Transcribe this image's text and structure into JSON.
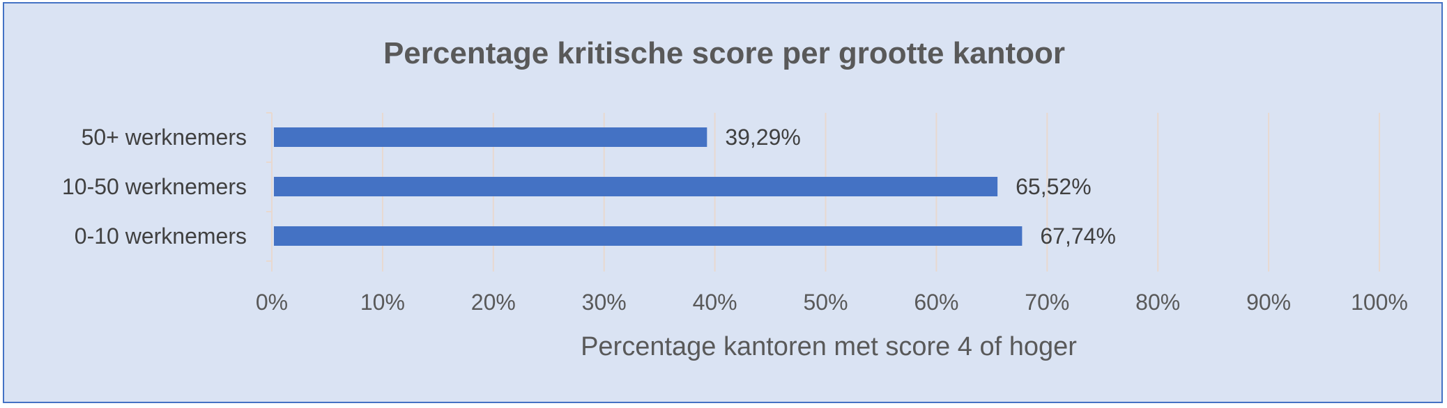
{
  "chart_data": {
    "type": "bar",
    "orientation": "horizontal",
    "title": "Percentage kritische score per grootte kantoor",
    "xlabel": "Percentage kantoren met score 4 of hoger",
    "ylabel": "",
    "categories": [
      "50+ werknemers",
      "10-50 werknemers",
      "0-10 werknemers"
    ],
    "values": [
      39.29,
      65.52,
      67.74
    ],
    "value_labels": [
      "39,29%",
      "65,52%",
      "67,74%"
    ],
    "xlim": [
      0,
      100
    ],
    "x_ticks": [
      0,
      10,
      20,
      30,
      40,
      50,
      60,
      70,
      80,
      90,
      100
    ],
    "x_tick_labels": [
      "0%",
      "10%",
      "20%",
      "30%",
      "40%",
      "50%",
      "60%",
      "70%",
      "80%",
      "90%",
      "100%"
    ],
    "grid": true,
    "legend": "none",
    "colors": {
      "bar": "#4472c4",
      "background": "#dae3f3",
      "border": "#4472c4"
    }
  }
}
